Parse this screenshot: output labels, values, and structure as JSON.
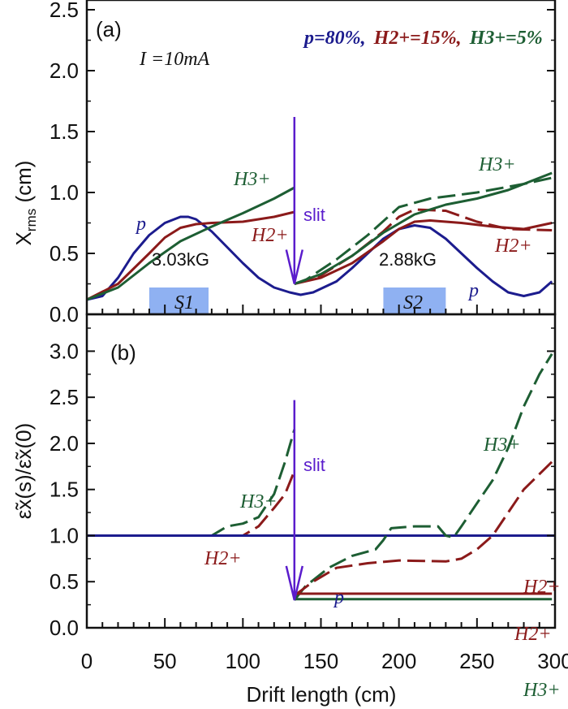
{
  "colors": {
    "p": "#1c1c8e",
    "H2": "#8b1a1a",
    "H3": "#1d5e33",
    "slit": "#5a1ccc",
    "solenoid": "#8fb1f2"
  },
  "chart_data": [
    {
      "type": "line",
      "panel_label": "(a)",
      "xlabel": "",
      "ylabel": "X",
      "ylabel_sub": "rms",
      "ylabel_unit": " (cm)",
      "xlim": [
        0,
        300
      ],
      "ylim": [
        0,
        2.58
      ],
      "yticks": [
        "0.0",
        "0.5",
        "1.0",
        "1.5",
        "2.0",
        "2.5"
      ],
      "grid": false,
      "annotations": {
        "current": "I =10mA",
        "legend_p": "p=80%,",
        "legend_h2": "H2+=15%,",
        "legend_h3": "H3+=5%",
        "slit": "slit",
        "s1_field": "3.03kG",
        "s1": "S1",
        "s2_field": "2.88kG",
        "s2": "S2",
        "label_p1": "p",
        "label_p2": "p",
        "label_h2_1": "H2+",
        "label_h2_2": "H2+",
        "label_h3_1": "H3+",
        "label_h3_2": "H3+"
      },
      "solenoids": [
        {
          "name": "S1",
          "x": [
            40,
            78
          ]
        },
        {
          "name": "S2",
          "x": [
            190,
            230
          ]
        }
      ],
      "slit_position": 133,
      "series": [
        {
          "name": "p",
          "style": "solid",
          "color_key": "p",
          "x": [
            0,
            10,
            20,
            30,
            40,
            50,
            60,
            65,
            70,
            80,
            90,
            100,
            110,
            120,
            130,
            137,
            145,
            160,
            170,
            180,
            190,
            200,
            210,
            220,
            230,
            240,
            250,
            260,
            270,
            280,
            290,
            298
          ],
          "y": [
            0.12,
            0.15,
            0.3,
            0.5,
            0.65,
            0.75,
            0.8,
            0.8,
            0.78,
            0.68,
            0.55,
            0.42,
            0.3,
            0.22,
            0.18,
            0.16,
            0.18,
            0.27,
            0.38,
            0.5,
            0.62,
            0.7,
            0.73,
            0.71,
            0.62,
            0.5,
            0.38,
            0.27,
            0.18,
            0.15,
            0.18,
            0.27
          ]
        },
        {
          "name": "H2+",
          "style": "solid",
          "color_key": "H2",
          "x": [
            0,
            20,
            40,
            50,
            60,
            70,
            80,
            100,
            120,
            133
          ],
          "y": [
            0.12,
            0.25,
            0.5,
            0.63,
            0.71,
            0.74,
            0.75,
            0.76,
            0.8,
            0.84
          ]
        },
        {
          "name": "H2+",
          "style": "solid",
          "color_key": "H2",
          "x": [
            133,
            150,
            170,
            190,
            200,
            210,
            220,
            240,
            260,
            280,
            298
          ],
          "y": [
            0.25,
            0.3,
            0.42,
            0.6,
            0.7,
            0.76,
            0.77,
            0.75,
            0.72,
            0.7,
            0.75
          ]
        },
        {
          "name": "H2+",
          "style": "dashed",
          "color_key": "H2",
          "x": [
            133,
            150,
            170,
            190,
            200,
            210,
            230,
            250,
            270,
            298
          ],
          "y": [
            0.25,
            0.32,
            0.48,
            0.68,
            0.8,
            0.86,
            0.85,
            0.76,
            0.7,
            0.69
          ]
        },
        {
          "name": "H3+",
          "style": "solid",
          "color_key": "H3",
          "x": [
            0,
            20,
            40,
            60,
            80,
            100,
            120,
            133
          ],
          "y": [
            0.12,
            0.22,
            0.42,
            0.6,
            0.72,
            0.83,
            0.95,
            1.04
          ]
        },
        {
          "name": "H3+",
          "style": "solid",
          "color_key": "H3",
          "x": [
            133,
            150,
            170,
            190,
            210,
            230,
            250,
            270,
            298
          ],
          "y": [
            0.25,
            0.33,
            0.48,
            0.67,
            0.82,
            0.9,
            0.95,
            1.02,
            1.16
          ]
        },
        {
          "name": "H3+",
          "style": "dashed",
          "color_key": "H3",
          "x": [
            133,
            140,
            160,
            180,
            200,
            220,
            250,
            280,
            298
          ],
          "y": [
            0.25,
            0.28,
            0.45,
            0.65,
            0.88,
            0.95,
            1.0,
            1.07,
            1.12
          ]
        }
      ]
    },
    {
      "type": "line",
      "panel_label": "(b)",
      "xlabel": "Drift length (cm)",
      "ylabel": "ε̃x(s)/ε̃x(0)",
      "xlim": [
        0,
        300
      ],
      "ylim": [
        0,
        3.4
      ],
      "xticks": [
        "0",
        "50",
        "100",
        "150",
        "200",
        "250",
        "300"
      ],
      "yticks": [
        "0.0",
        "0.5",
        "1.0",
        "1.5",
        "2.0",
        "2.5",
        "3.0"
      ],
      "grid": false,
      "annotations": {
        "slit": "slit",
        "label_p": "p",
        "label_h3_1": "H3+",
        "label_h2_1": "H2+",
        "label_h3_2": "H3+",
        "label_h2_2": "H2+",
        "label_h2_3": "H2+",
        "label_h3_3": "H3+"
      },
      "slit_position": 133,
      "series": [
        {
          "name": "H3+",
          "style": "solid",
          "color_key": "H3",
          "x": [
            0,
            133
          ],
          "y": [
            1.0,
            1.0
          ]
        },
        {
          "name": "H3+",
          "style": "dashed",
          "color_key": "H3",
          "x": [
            0,
            80,
            85,
            90,
            100,
            110,
            120,
            127,
            133
          ],
          "y": [
            1.0,
            1.0,
            1.05,
            1.1,
            1.13,
            1.2,
            1.45,
            1.8,
            2.15
          ]
        },
        {
          "name": "H2+",
          "style": "dashed",
          "color_key": "H2",
          "x": [
            0,
            100,
            110,
            120,
            127,
            133
          ],
          "y": [
            1.0,
            1.0,
            1.1,
            1.3,
            1.45,
            1.7
          ]
        },
        {
          "name": "p",
          "style": "solid",
          "color_key": "p",
          "x": [
            0,
            300
          ],
          "y": [
            1.0,
            1.0
          ]
        },
        {
          "name": "H3+",
          "style": "dashed",
          "color_key": "H3",
          "x": [
            133,
            140,
            155,
            170,
            185,
            190,
            195,
            210,
            225,
            230,
            235,
            240,
            250,
            260,
            270,
            280,
            290,
            298
          ],
          "y": [
            0.3,
            0.45,
            0.65,
            0.78,
            0.85,
            0.95,
            1.08,
            1.1,
            1.1,
            1.0,
            0.98,
            1.1,
            1.35,
            1.6,
            1.95,
            2.4,
            2.75,
            2.97
          ]
        },
        {
          "name": "H2+",
          "style": "dashed",
          "color_key": "H2",
          "x": [
            133,
            145,
            160,
            180,
            200,
            230,
            240,
            250,
            260,
            270,
            280,
            298
          ],
          "y": [
            0.35,
            0.5,
            0.65,
            0.7,
            0.73,
            0.72,
            0.75,
            0.85,
            1.0,
            1.25,
            1.5,
            1.8
          ]
        },
        {
          "name": "H2+",
          "style": "solid",
          "color_key": "H2",
          "x": [
            133,
            298
          ],
          "y": [
            0.37,
            0.37
          ]
        },
        {
          "name": "H3+",
          "style": "solid",
          "color_key": "H3",
          "x": [
            133,
            298
          ],
          "y": [
            0.31,
            0.31
          ]
        }
      ]
    }
  ]
}
